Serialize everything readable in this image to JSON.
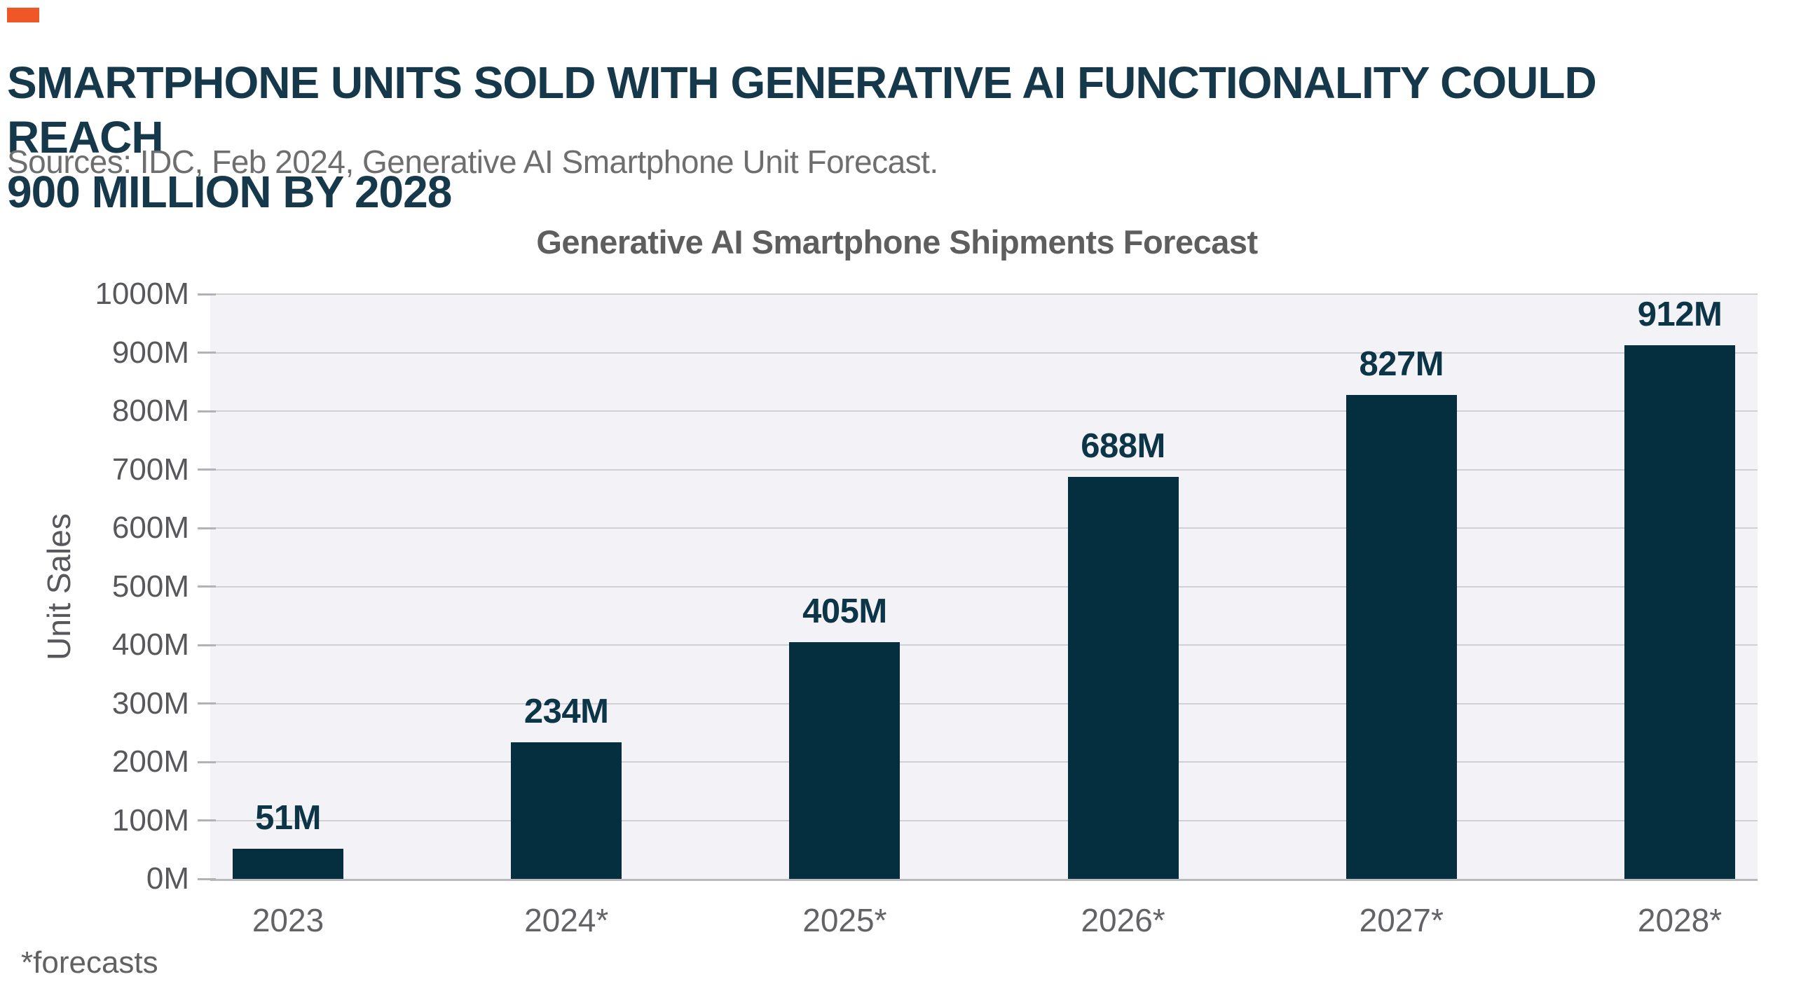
{
  "accent_color": "#ef5727",
  "header": {
    "title_line1": "SMARTPHONE UNITS SOLD WITH GENERATIVE AI FUNCTIONALITY COULD REACH",
    "title_line2": "900 MILLION BY 2028",
    "source": "Sources: IDC, Feb 2024, Generative AI Smartphone Unit Forecast."
  },
  "footnote": "*forecasts",
  "chart_data": {
    "type": "bar",
    "title": "Generative AI Smartphone Shipments Forecast",
    "categories": [
      "2023",
      "2024*",
      "2025*",
      "2026*",
      "2027*",
      "2028*"
    ],
    "values": [
      51,
      234,
      405,
      688,
      827,
      912
    ],
    "value_labels": [
      "51M",
      "234M",
      "405M",
      "688M",
      "827M",
      "912M"
    ],
    "xlabel": "",
    "ylabel": "Unit Sales",
    "ylim": [
      0,
      1000
    ],
    "ytick_step": 100,
    "ytick_suffix": "M",
    "grid": true,
    "legend": "none",
    "bar_color": "#052e3e",
    "value_label_color": "#0c3547",
    "plot_background": "#f3f3f7",
    "gridline_color": "#cfcfd4"
  }
}
